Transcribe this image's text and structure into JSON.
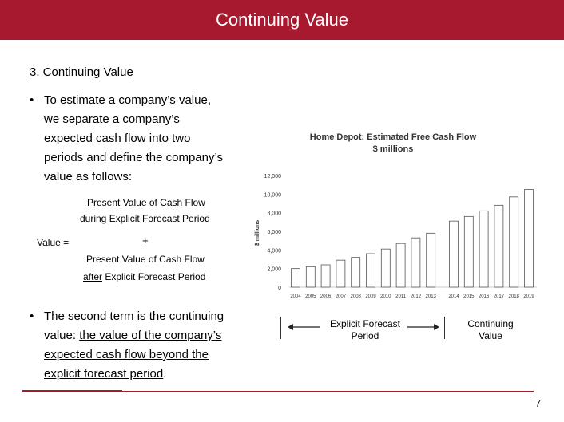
{
  "header": {
    "title": "Continuing Value"
  },
  "section_title": "3. Continuing Value",
  "bullets": [
    {
      "symbol": "•",
      "lines": [
        "To estimate a company’s value,",
        "we separate a company’s",
        "expected cash flow into two",
        "periods and define the company’s",
        "value as follows:"
      ]
    },
    {
      "symbol": "•",
      "line1": "The second term is the continuing",
      "line2_plain": "value: ",
      "line2_underlined": "the value of the company’s",
      "line3": "expected cash flow beyond the",
      "line4": "explicit forecast period",
      "line4_tail": "."
    }
  ],
  "formula": {
    "term1_line1": "Present Value of Cash Flow",
    "term1_underlined": "during",
    "term1_line2_rest": " Explicit Forecast Period",
    "value_label": "Value =",
    "plus": "+",
    "term2_line1": "Present Value of Cash Flow",
    "term2_underlined": "after",
    "term2_line2_rest": " Explicit Forecast Period"
  },
  "chart_data": {
    "type": "bar",
    "title": "Home Depot: Estimated Free Cash Flow",
    "subtitle": "$ millions",
    "ylabel": "$ millions",
    "xlabel": "",
    "ylim": [
      0,
      12000
    ],
    "yticks": [
      0,
      2000,
      4000,
      6000,
      8000,
      10000,
      12000
    ],
    "ytick_labels": [
      "0",
      "2,000",
      "4,000",
      "6,000",
      "8,000",
      "10,000",
      "12,000"
    ],
    "categories": [
      "2004",
      "2005",
      "2006",
      "2007",
      "2008",
      "2009",
      "2010",
      "2011",
      "2012",
      "2013",
      "2014",
      "2015",
      "2016",
      "2017",
      "2018",
      "2019"
    ],
    "values": [
      2000,
      2200,
      2400,
      2900,
      3200,
      3600,
      4100,
      4700,
      5300,
      5800,
      7100,
      7600,
      8200,
      8800,
      9700,
      10500
    ],
    "grid": false,
    "bar_color": "#ffffff",
    "bar_edge_color": "#555555"
  },
  "timeline": {
    "explicit_label": [
      "Explicit Forecast",
      "Period"
    ],
    "continuing_label": [
      "Continuing",
      "Value"
    ]
  },
  "page_number": "7",
  "colors": {
    "accent": "#a6192e"
  }
}
